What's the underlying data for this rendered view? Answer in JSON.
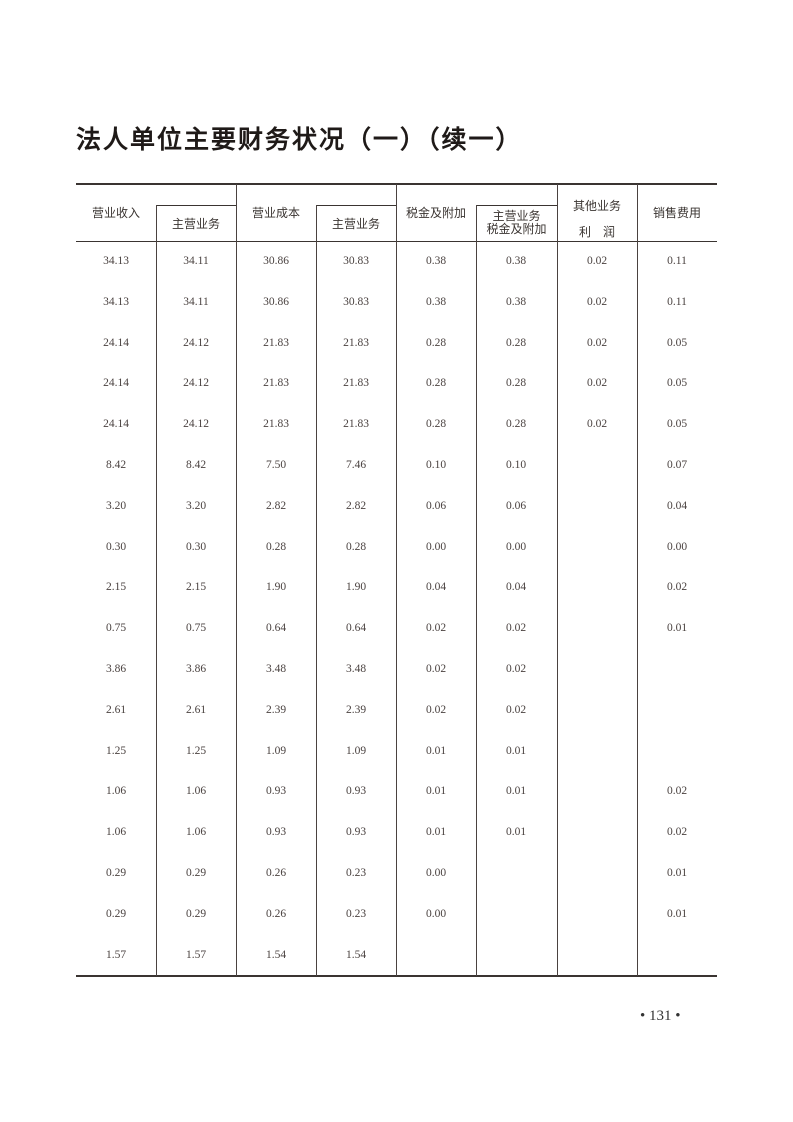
{
  "title": "法人单位主要财务状况（一）（续一）",
  "headers": {
    "revenue": "营业收入",
    "revenue_main": "主营业务",
    "cost": "营业成本",
    "cost_main": "主营业务",
    "tax": "税金及附加",
    "tax_main_line1": "主营业务",
    "tax_main_line2": "税金及附加",
    "other_profit_line1": "其他业务",
    "other_profit_line2": "利　润",
    "selling_expense": "销售费用"
  },
  "rows": [
    [
      "34.13",
      "34.11",
      "30.86",
      "30.83",
      "0.38",
      "0.38",
      "0.02",
      "0.11"
    ],
    [
      "34.13",
      "34.11",
      "30.86",
      "30.83",
      "0.38",
      "0.38",
      "0.02",
      "0.11"
    ],
    [
      "24.14",
      "24.12",
      "21.83",
      "21.83",
      "0.28",
      "0.28",
      "0.02",
      "0.05"
    ],
    [
      "24.14",
      "24.12",
      "21.83",
      "21.83",
      "0.28",
      "0.28",
      "0.02",
      "0.05"
    ],
    [
      "24.14",
      "24.12",
      "21.83",
      "21.83",
      "0.28",
      "0.28",
      "0.02",
      "0.05"
    ],
    [
      "8.42",
      "8.42",
      "7.50",
      "7.46",
      "0.10",
      "0.10",
      "",
      "0.07"
    ],
    [
      "3.20",
      "3.20",
      "2.82",
      "2.82",
      "0.06",
      "0.06",
      "",
      "0.04"
    ],
    [
      "0.30",
      "0.30",
      "0.28",
      "0.28",
      "0.00",
      "0.00",
      "",
      "0.00"
    ],
    [
      "2.15",
      "2.15",
      "1.90",
      "1.90",
      "0.04",
      "0.04",
      "",
      "0.02"
    ],
    [
      "0.75",
      "0.75",
      "0.64",
      "0.64",
      "0.02",
      "0.02",
      "",
      "0.01"
    ],
    [
      "3.86",
      "3.86",
      "3.48",
      "3.48",
      "0.02",
      "0.02",
      "",
      ""
    ],
    [
      "2.61",
      "2.61",
      "2.39",
      "2.39",
      "0.02",
      "0.02",
      "",
      ""
    ],
    [
      "1.25",
      "1.25",
      "1.09",
      "1.09",
      "0.01",
      "0.01",
      "",
      ""
    ],
    [
      "1.06",
      "1.06",
      "0.93",
      "0.93",
      "0.01",
      "0.01",
      "",
      "0.02"
    ],
    [
      "1.06",
      "1.06",
      "0.93",
      "0.93",
      "0.01",
      "0.01",
      "",
      "0.02"
    ],
    [
      "0.29",
      "0.29",
      "0.26",
      "0.23",
      "0.00",
      "",
      "",
      "0.01"
    ],
    [
      "0.29",
      "0.29",
      "0.26",
      "0.23",
      "0.00",
      "",
      "",
      "0.01"
    ],
    [
      "1.57",
      "1.57",
      "1.54",
      "1.54",
      "",
      "",
      "",
      ""
    ]
  ],
  "page_number": "• 131 •"
}
